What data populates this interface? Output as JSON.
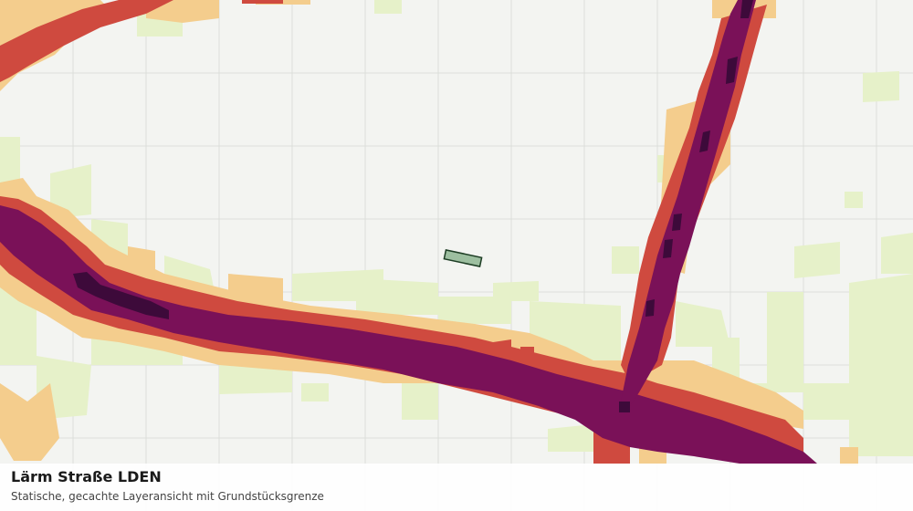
{
  "layer": {
    "title": "Lärm Straße LDEN",
    "subtitle": "Statische, gecachte Layeransicht mit Grundstücksgrenze"
  },
  "legend_colors": {
    "background": "#f3f4f1",
    "grid": "#dcdedb",
    "class_1": "#e6f1c9",
    "class_2": "#f4cd8d",
    "class_3": "#cf4a3f",
    "class_4": "#7a1158",
    "class_5": "#3d0a3a",
    "parcel_fill": "#9dbfa0",
    "parcel_stroke": "#1d3d24"
  }
}
